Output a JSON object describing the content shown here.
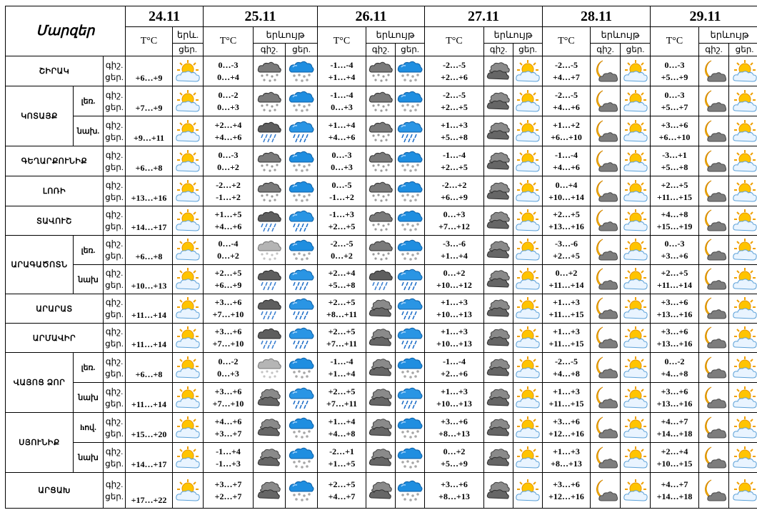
{
  "header": {
    "region_label": "Մարզեր",
    "t_label": "T°C",
    "weather_short": "երև.",
    "weather_label": "երևույթ",
    "night": "գիշ.",
    "day": "ցեր."
  },
  "dates": [
    "24.11",
    "25.11",
    "26.11",
    "27.11",
    "28.11",
    "29.11"
  ],
  "rows": [
    {
      "region": "ՇԻՐԱԿ",
      "sub": "",
      "first": true,
      "span": 1,
      "t0": "+6…+9",
      "i0": "sun-cloud",
      "d": [
        {
          "n": "0…-3",
          "d": "0…+4",
          "iN": "snow-cloud-dark",
          "iD": "snow-cloud-blue"
        },
        {
          "n": "-1…-4",
          "d": "+1…+4",
          "iN": "snow-cloud-dark",
          "iD": "snow-cloud-blue"
        },
        {
          "n": "-2…-5",
          "d": "+2…+6",
          "iN": "cloud-dark",
          "iD": "sun-cloud"
        },
        {
          "n": "-2…-5",
          "d": "+4…+7",
          "iN": "moon-cloud",
          "iD": "sun-cloud"
        },
        {
          "n": "0…-3",
          "d": "+5…+9",
          "iN": "moon-cloud",
          "iD": "sun-cloud"
        }
      ]
    },
    {
      "region": "ԿՈՏԱՅՔ",
      "sub": "լեռ.",
      "first": true,
      "span": 2,
      "t0": "+7…+9",
      "i0": "sun-cloud",
      "d": [
        {
          "n": "0…-2",
          "d": "0…+3",
          "iN": "snow-cloud-dark",
          "iD": "snow-cloud-blue"
        },
        {
          "n": "-1…-4",
          "d": "0…+3",
          "iN": "snow-cloud-dark",
          "iD": "snow-cloud-blue"
        },
        {
          "n": "-2…-5",
          "d": "+2…+5",
          "iN": "cloud-dark",
          "iD": "sun-cloud"
        },
        {
          "n": "-2…-5",
          "d": "+4…+6",
          "iN": "moon-cloud",
          "iD": "sun-cloud"
        },
        {
          "n": "0…-3",
          "d": "+5…+7",
          "iN": "moon-cloud",
          "iD": "sun-cloud"
        }
      ]
    },
    {
      "region": "",
      "sub": "նախ.",
      "first": false,
      "span": 0,
      "t0": "+9…+11",
      "i0": "sun-cloud",
      "d": [
        {
          "n": "+2…+4",
          "d": "+4…+6",
          "iN": "rain-cloud-dark",
          "iD": "rain-cloud-blue"
        },
        {
          "n": "+1…+4",
          "d": "+4…+6",
          "iN": "snow-cloud-dark",
          "iD": "rain-cloud-blue"
        },
        {
          "n": "+1…+3",
          "d": "+5…+8",
          "iN": "cloud-dark",
          "iD": "sun-cloud"
        },
        {
          "n": "+1…+2",
          "d": "+6…+10",
          "iN": "moon-cloud",
          "iD": "sun-cloud"
        },
        {
          "n": "+3…+6",
          "d": "+6…+10",
          "iN": "moon-cloud",
          "iD": "sun-cloud"
        }
      ]
    },
    {
      "region": "ԳԵՂԱՐՔՈՒՆԻՔ",
      "sub": "",
      "first": true,
      "span": 1,
      "t0": "+6…+8",
      "i0": "sun-cloud",
      "d": [
        {
          "n": "0…-3",
          "d": "0…+2",
          "iN": "snow-cloud-dark",
          "iD": "snow-cloud-blue"
        },
        {
          "n": "0…-3",
          "d": "0…+3",
          "iN": "snow-cloud-dark",
          "iD": "snow-cloud-blue"
        },
        {
          "n": "-1…-4",
          "d": "+2…+5",
          "iN": "cloud-dark",
          "iD": "sun-cloud"
        },
        {
          "n": "-1…-4",
          "d": "+4…+6",
          "iN": "moon-cloud",
          "iD": "sun-cloud"
        },
        {
          "n": "-3…+1",
          "d": "+5…+8",
          "iN": "moon-cloud",
          "iD": "sun-cloud"
        }
      ]
    },
    {
      "region": "ԼՈՌԻ",
      "sub": "",
      "first": true,
      "span": 1,
      "t0": "+13…+16",
      "i0": "sun-cloud",
      "d": [
        {
          "n": "-2…+2",
          "d": "-1…+2",
          "iN": "snow-cloud-dark",
          "iD": "snow-cloud-blue"
        },
        {
          "n": "0…-5",
          "d": "-1…+2",
          "iN": "snow-cloud-dark",
          "iD": "snow-cloud-blue"
        },
        {
          "n": "-2…+2",
          "d": "+6…+9",
          "iN": "cloud-dark",
          "iD": "sun-cloud"
        },
        {
          "n": "0…+4",
          "d": "+10…+14",
          "iN": "moon-cloud",
          "iD": "sun-cloud"
        },
        {
          "n": "+2…+5",
          "d": "+11…+15",
          "iN": "moon-cloud",
          "iD": "sun-cloud"
        }
      ]
    },
    {
      "region": "ՏԱՎՈՒՇ",
      "sub": "",
      "first": true,
      "span": 1,
      "t0": "+14…+17",
      "i0": "sun-cloud",
      "d": [
        {
          "n": "+1…+5",
          "d": "+4…+6",
          "iN": "rain-cloud-dark",
          "iD": "rain-cloud-blue"
        },
        {
          "n": "-1…+3",
          "d": "+2…+5",
          "iN": "snow-cloud-dark",
          "iD": "snow-cloud-blue"
        },
        {
          "n": "0…+3",
          "d": "+7…+12",
          "iN": "cloud-dark",
          "iD": "sun-cloud"
        },
        {
          "n": "+2…+5",
          "d": "+13…+16",
          "iN": "moon-cloud",
          "iD": "sun-cloud"
        },
        {
          "n": "+4…+8",
          "d": "+15…+19",
          "iN": "moon-cloud",
          "iD": "sun-cloud"
        }
      ]
    },
    {
      "region": "ԱՐԱԳԱԾՈՏՆ",
      "sub": "լեռ.",
      "first": true,
      "span": 2,
      "t0": "+6…+8",
      "i0": "sun-cloud",
      "d": [
        {
          "n": "0…-4",
          "d": "0…+2",
          "iN": "snow-cloud-light",
          "iD": "snow-cloud-blue"
        },
        {
          "n": "-2…-5",
          "d": "0…+2",
          "iN": "snow-cloud-dark",
          "iD": "snow-cloud-blue"
        },
        {
          "n": "-3…-6",
          "d": "+1…+4",
          "iN": "cloud-dark",
          "iD": "sun-cloud"
        },
        {
          "n": "-3…-6",
          "d": "+2…+5",
          "iN": "moon-cloud",
          "iD": "sun-cloud"
        },
        {
          "n": "0…-3",
          "d": "+3…+6",
          "iN": "moon-cloud",
          "iD": "sun-cloud"
        }
      ]
    },
    {
      "region": "",
      "sub": "նախ",
      "first": false,
      "span": 0,
      "t0": "+10…+13",
      "i0": "sun-cloud",
      "d": [
        {
          "n": "+2…+5",
          "d": "+6…+9",
          "iN": "rain-cloud-dark",
          "iD": "rain-cloud-blue"
        },
        {
          "n": "+2…+4",
          "d": "+5…+8",
          "iN": "rain-cloud-dark",
          "iD": "rain-cloud-blue"
        },
        {
          "n": "0…+2",
          "d": "+10…+12",
          "iN": "cloud-dark",
          "iD": "sun-cloud"
        },
        {
          "n": "0…+2",
          "d": "+11…+14",
          "iN": "moon-cloud",
          "iD": "sun-cloud"
        },
        {
          "n": "+2…+5",
          "d": "+11…+14",
          "iN": "moon-cloud",
          "iD": "sun-cloud"
        }
      ]
    },
    {
      "region": "ԱՐԱՐԱՏ",
      "sub": "",
      "first": true,
      "span": 1,
      "t0": "+11…+14",
      "i0": "sun-cloud",
      "d": [
        {
          "n": "+3…+6",
          "d": "+7…+10",
          "iN": "rain-cloud-dark",
          "iD": "rain-cloud-blue"
        },
        {
          "n": "+2…+5",
          "d": "+8…+11",
          "iN": "cloud-dark",
          "iD": "rain-cloud-blue"
        },
        {
          "n": "+1…+3",
          "d": "+10…+13",
          "iN": "cloud-dark",
          "iD": "sun-cloud"
        },
        {
          "n": "+1…+3",
          "d": "+11…+15",
          "iN": "moon-cloud",
          "iD": "sun-cloud"
        },
        {
          "n": "+3…+6",
          "d": "+13…+16",
          "iN": "moon-cloud",
          "iD": "sun-cloud"
        }
      ]
    },
    {
      "region": "ԱՐՄԱՎԻՐ",
      "sub": "",
      "first": true,
      "span": 1,
      "t0": "+11…+14",
      "i0": "sun-cloud",
      "d": [
        {
          "n": "+3…+6",
          "d": "+7…+10",
          "iN": "rain-cloud-dark",
          "iD": "rain-cloud-blue"
        },
        {
          "n": "+2…+5",
          "d": "+7…+11",
          "iN": "cloud-dark",
          "iD": "rain-cloud-blue"
        },
        {
          "n": "+1…+3",
          "d": "+10…+13",
          "iN": "cloud-dark",
          "iD": "sun-cloud"
        },
        {
          "n": "+1…+3",
          "d": "+11…+15",
          "iN": "moon-cloud",
          "iD": "sun-cloud"
        },
        {
          "n": "+3…+6",
          "d": "+13…+16",
          "iN": "moon-cloud",
          "iD": "sun-cloud"
        }
      ]
    },
    {
      "region": "ՎԱՅՈՑ ՁՈՐ",
      "sub": "լեռ.",
      "first": true,
      "span": 2,
      "t0": "+6…+8",
      "i0": "sun-cloud",
      "d": [
        {
          "n": "0…-2",
          "d": "0…+3",
          "iN": "snow-cloud-light",
          "iD": "snow-cloud-blue"
        },
        {
          "n": "-1…-4",
          "d": "+1…+4",
          "iN": "cloud-dark",
          "iD": "snow-cloud-blue"
        },
        {
          "n": "-1…-4",
          "d": "+2…+6",
          "iN": "cloud-dark",
          "iD": "sun-cloud"
        },
        {
          "n": "-2…-5",
          "d": "+4…+8",
          "iN": "moon-cloud",
          "iD": "sun-cloud"
        },
        {
          "n": "0…-2",
          "d": "+4…+8",
          "iN": "moon-cloud",
          "iD": "sun-cloud"
        }
      ]
    },
    {
      "region": "",
      "sub": "նախ",
      "first": false,
      "span": 0,
      "t0": "+11…+14",
      "i0": "sun-cloud",
      "d": [
        {
          "n": "+3…+6",
          "d": "+7…+10",
          "iN": "cloud-dark",
          "iD": "rain-cloud-blue"
        },
        {
          "n": "+2…+5",
          "d": "+7…+11",
          "iN": "cloud-dark",
          "iD": "rain-cloud-blue"
        },
        {
          "n": "+1…+3",
          "d": "+10…+13",
          "iN": "cloud-dark",
          "iD": "sun-cloud"
        },
        {
          "n": "+1…+3",
          "d": "+11…+15",
          "iN": "moon-cloud",
          "iD": "sun-cloud"
        },
        {
          "n": "+3…+6",
          "d": "+13…+16",
          "iN": "moon-cloud",
          "iD": "sun-cloud"
        }
      ]
    },
    {
      "region": "ՍՅՈՒՆԻՔ",
      "sub": "hով.",
      "first": true,
      "span": 2,
      "t0": "+15…+20",
      "i0": "sun-cloud",
      "d": [
        {
          "n": "+4…+6",
          "d": "+3…+7",
          "iN": "cloud-dark",
          "iD": "snow-cloud-blue"
        },
        {
          "n": "+1…+4",
          "d": "+4…+8",
          "iN": "cloud-dark",
          "iD": "snow-cloud-blue"
        },
        {
          "n": "+3…+6",
          "d": "+8…+13",
          "iN": "cloud-dark",
          "iD": "sun-cloud"
        },
        {
          "n": "+3…+6",
          "d": "+12…+16",
          "iN": "moon-cloud",
          "iD": "sun-cloud"
        },
        {
          "n": "+4…+7",
          "d": "+14…+18",
          "iN": "moon-cloud",
          "iD": "sun-cloud"
        }
      ]
    },
    {
      "region": "",
      "sub": "նախ",
      "first": false,
      "span": 0,
      "t0": "+14…+17",
      "i0": "sun-cloud",
      "d": [
        {
          "n": "-1…+4",
          "d": "-1…+3",
          "iN": "cloud-dark",
          "iD": "snow-cloud-blue"
        },
        {
          "n": "-2…+1",
          "d": "+1…+5",
          "iN": "cloud-dark",
          "iD": "snow-cloud-blue"
        },
        {
          "n": "0…+2",
          "d": "+5…+9",
          "iN": "cloud-dark",
          "iD": "sun-cloud"
        },
        {
          "n": "+1…+3",
          "d": "+8…+13",
          "iN": "moon-cloud",
          "iD": "sun-cloud"
        },
        {
          "n": "+2…+4",
          "d": "+10…+15",
          "iN": "moon-cloud",
          "iD": "sun-cloud"
        }
      ]
    },
    {
      "region": "ԱՐՑԱԽ",
      "sub": "",
      "first": true,
      "span": 1,
      "t0": "+17…+22",
      "i0": "sun-cloud",
      "d": [
        {
          "n": "+3…+7",
          "d": "+2…+7",
          "iN": "cloud-dark",
          "iD": "snow-cloud-blue"
        },
        {
          "n": "+2…+5",
          "d": "+4…+7",
          "iN": "cloud-dark",
          "iD": "snow-cloud-blue"
        },
        {
          "n": "+3…+6",
          "d": "+8…+13",
          "iN": "cloud-dark",
          "iD": "sun-cloud"
        },
        {
          "n": "+3…+6",
          "d": "+12…+16",
          "iN": "moon-cloud",
          "iD": "sun-cloud"
        },
        {
          "n": "+4…+7",
          "d": "+14…+18",
          "iN": "moon-cloud",
          "iD": "sun-cloud"
        }
      ]
    }
  ]
}
